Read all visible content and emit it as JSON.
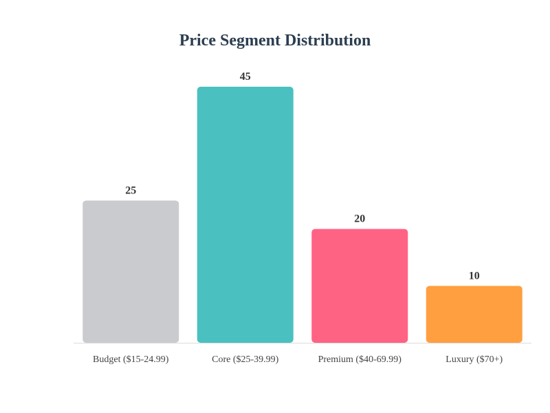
{
  "chart_data": {
    "type": "bar",
    "title": "Price Segment Distribution",
    "categories": [
      "Budget ($15-24.99)",
      "Core ($25-39.99)",
      "Premium ($40-69.99)",
      "Luxury ($70+)"
    ],
    "values": [
      25,
      45,
      20,
      10
    ],
    "colors": [
      "#c9cbcf",
      "#4bc0c0",
      "#ff6384",
      "#ff9f40"
    ],
    "xlabel": "",
    "ylabel": "",
    "ylim": [
      0,
      45
    ],
    "grid": false,
    "legend": "none"
  }
}
